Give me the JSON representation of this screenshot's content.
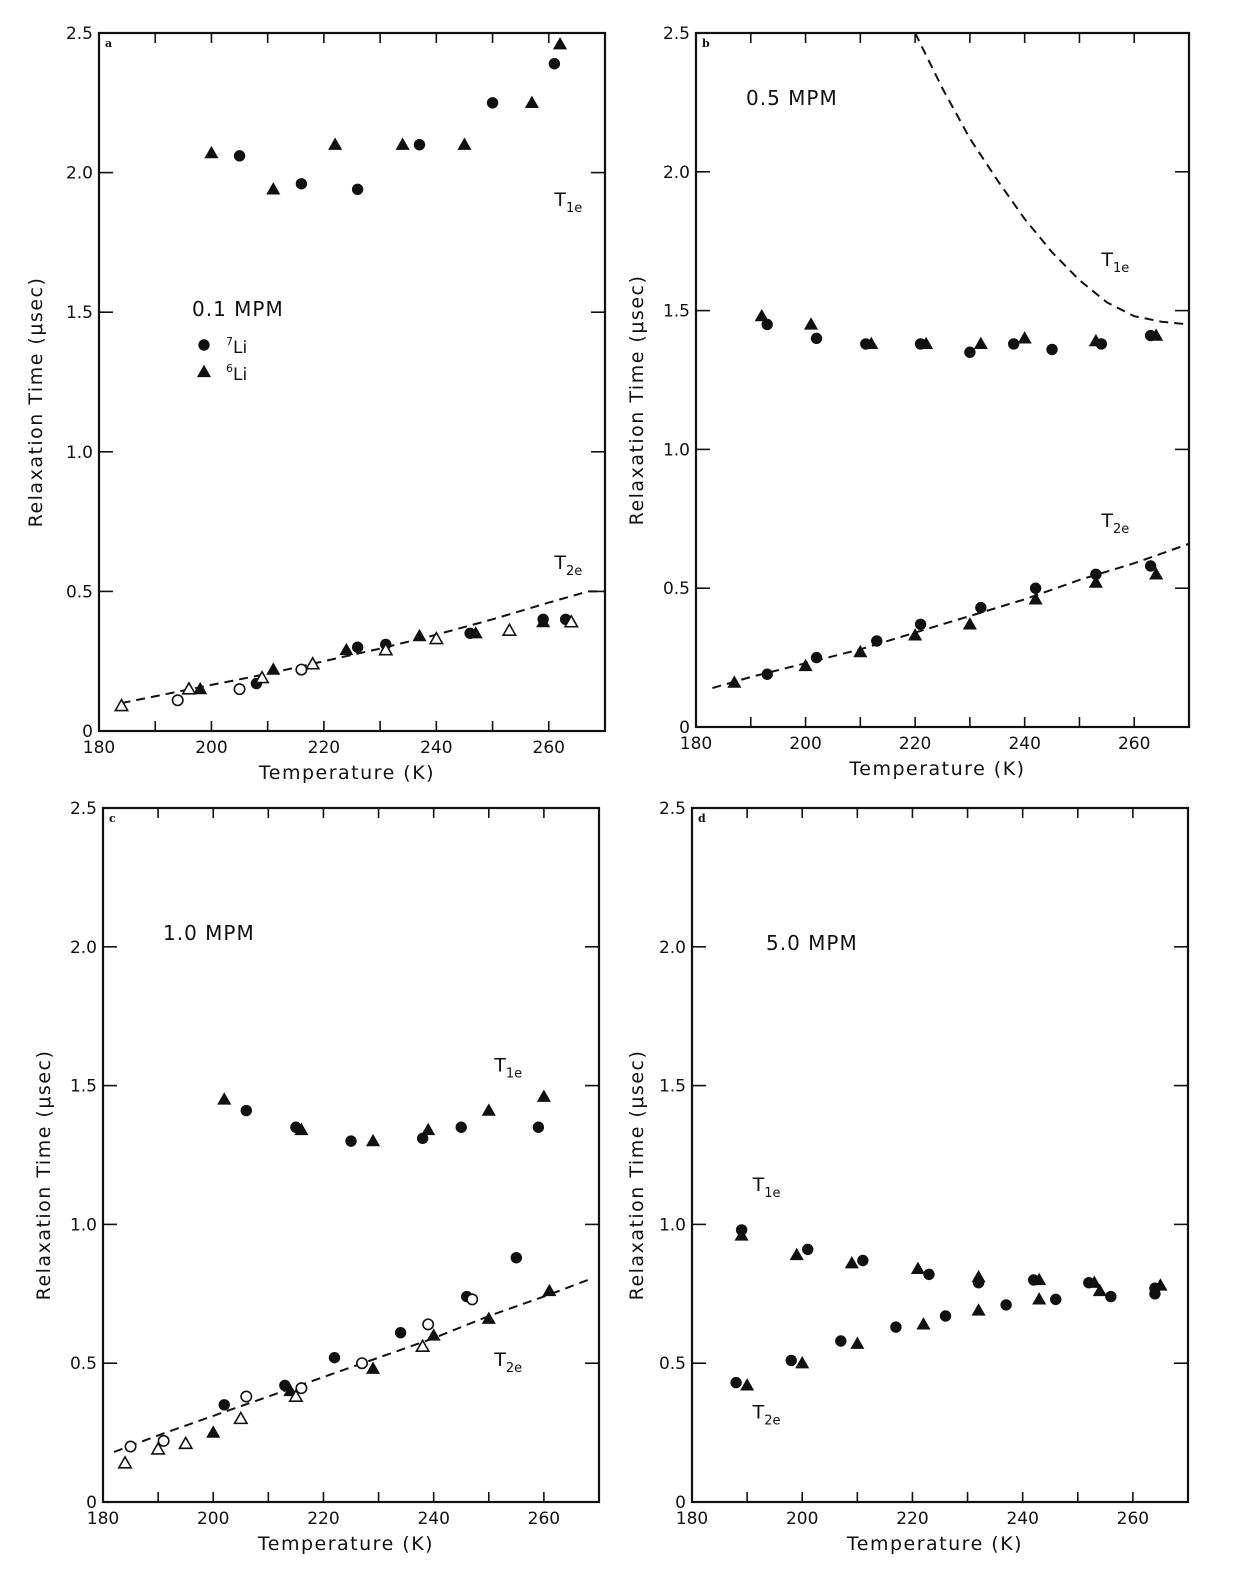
{
  "chart_data": [
    {
      "panel": "a",
      "type": "scatter",
      "annotation": "0.1 MPM",
      "xlabel": "Temperature (K)",
      "ylabel": "Relaxation Time (μsec)",
      "xlim": [
        180,
        270
      ],
      "ylim": [
        0,
        2.5
      ],
      "xticks": [
        180,
        200,
        220,
        240,
        260
      ],
      "xminor": [
        190,
        210,
        230,
        250,
        270
      ],
      "yticks": [
        0,
        0.5,
        1.0,
        1.5,
        2.0,
        2.5
      ],
      "ytick_labels": [
        "0",
        "0.5",
        "1.0",
        "1.5",
        "2.0",
        "2.5"
      ],
      "grid": false,
      "legend": {
        "placement": "center-left",
        "entries": [
          {
            "marker": "filled-circle",
            "isotope": "Li",
            "mass": "7"
          },
          {
            "marker": "filled-triangle",
            "isotope": "Li",
            "mass": "6"
          }
        ]
      },
      "curve_labels": [
        {
          "main": "T",
          "sub": "1e",
          "at": [
            261,
            1.88
          ]
        },
        {
          "main": "T",
          "sub": "2e",
          "at": [
            261,
            0.58
          ]
        }
      ],
      "series": [
        {
          "name": "T1e 7Li",
          "marker": "filled-circle",
          "x": [
            205,
            216,
            226,
            237,
            250,
            261
          ],
          "y": [
            2.06,
            1.96,
            1.94,
            2.1,
            2.25,
            2.39
          ]
        },
        {
          "name": "T1e 6Li",
          "marker": "filled-triangle",
          "x": [
            200,
            211,
            222,
            234,
            245,
            257,
            262
          ],
          "y": [
            2.07,
            1.94,
            2.1,
            2.1,
            2.1,
            2.25,
            2.46
          ]
        },
        {
          "name": "T2e 7Li",
          "marker": "filled-circle",
          "x": [
            208,
            226,
            231,
            246,
            259,
            263
          ],
          "y": [
            0.17,
            0.3,
            0.31,
            0.35,
            0.4,
            0.4
          ]
        },
        {
          "name": "T2e 6Li",
          "marker": "filled-triangle",
          "x": [
            198,
            211,
            224,
            237,
            247,
            259
          ],
          "y": [
            0.15,
            0.22,
            0.29,
            0.34,
            0.35,
            0.39
          ]
        },
        {
          "name": "T2e 7Li (open)",
          "marker": "open-circle",
          "x": [
            194,
            205,
            216
          ],
          "y": [
            0.11,
            0.15,
            0.22
          ]
        },
        {
          "name": "T2e 6Li (open)",
          "marker": "open-triangle",
          "x": [
            184,
            196,
            209,
            218,
            231,
            240,
            253,
            264
          ],
          "y": [
            0.09,
            0.15,
            0.19,
            0.24,
            0.29,
            0.33,
            0.36,
            0.39
          ]
        }
      ],
      "fits": [
        {
          "name": "T2e fit",
          "style": "dashed",
          "x": [
            184,
            200,
            210,
            220,
            230,
            240,
            250,
            260,
            267,
            270
          ],
          "y": [
            0.1,
            0.165,
            0.205,
            0.25,
            0.295,
            0.345,
            0.4,
            0.46,
            0.5,
            0.5
          ]
        }
      ]
    },
    {
      "panel": "b",
      "type": "scatter",
      "annotation": "0.5 MPM",
      "xlabel": "Temperature (K)",
      "ylabel": "Relaxation Time (μsec)",
      "xlim": [
        180,
        270
      ],
      "ylim": [
        0,
        2.5
      ],
      "xticks": [
        180,
        200,
        220,
        240,
        260
      ],
      "xminor": [
        190,
        210,
        230,
        250,
        270
      ],
      "yticks": [
        0,
        0.5,
        1.0,
        1.5,
        2.0,
        2.5
      ],
      "ytick_labels": [
        "0",
        "0.5",
        "1.0",
        "1.5",
        "2.0",
        "2.5"
      ],
      "grid": false,
      "curve_labels": [
        {
          "main": "T",
          "sub": "1e",
          "at": [
            254,
            1.66
          ]
        },
        {
          "main": "T",
          "sub": "2e",
          "at": [
            254,
            0.72
          ]
        }
      ],
      "series": [
        {
          "name": "T1e 7Li",
          "marker": "filled-circle",
          "x": [
            193,
            202,
            211,
            221,
            230,
            238,
            245,
            254,
            263
          ],
          "y": [
            1.45,
            1.4,
            1.38,
            1.38,
            1.35,
            1.38,
            1.36,
            1.38,
            1.41
          ]
        },
        {
          "name": "T1e 6Li",
          "marker": "filled-triangle",
          "x": [
            192,
            201,
            212,
            222,
            232,
            240,
            253,
            264
          ],
          "y": [
            1.48,
            1.45,
            1.38,
            1.38,
            1.38,
            1.4,
            1.39,
            1.41
          ]
        },
        {
          "name": "T2e 7Li",
          "marker": "filled-circle",
          "x": [
            193,
            202,
            213,
            221,
            232,
            242,
            253,
            263
          ],
          "y": [
            0.19,
            0.25,
            0.31,
            0.37,
            0.43,
            0.5,
            0.55,
            0.58
          ]
        },
        {
          "name": "T2e 6Li",
          "marker": "filled-triangle",
          "x": [
            187,
            200,
            210,
            220,
            230,
            242,
            253,
            264
          ],
          "y": [
            0.16,
            0.22,
            0.27,
            0.33,
            0.37,
            0.46,
            0.52,
            0.55
          ]
        }
      ],
      "fits": [
        {
          "name": "T1e fit",
          "style": "dashed",
          "x": [
            220,
            225,
            230,
            235,
            240,
            245,
            250,
            255,
            260,
            265,
            270
          ],
          "y": [
            2.5,
            2.3,
            2.12,
            1.97,
            1.83,
            1.71,
            1.61,
            1.53,
            1.48,
            1.46,
            1.45
          ]
        },
        {
          "name": "T2e fit",
          "style": "dashed",
          "x": [
            183,
            190,
            200,
            210,
            220,
            230,
            240,
            250,
            260,
            270
          ],
          "y": [
            0.14,
            0.18,
            0.23,
            0.28,
            0.34,
            0.4,
            0.46,
            0.53,
            0.59,
            0.66
          ]
        }
      ]
    },
    {
      "panel": "c",
      "type": "scatter",
      "annotation": "1.0 MPM",
      "xlabel": "Temperature (K)",
      "ylabel": "Relaxation Time (μsec)",
      "xlim": [
        180,
        270
      ],
      "ylim": [
        0,
        2.5
      ],
      "xticks": [
        180,
        200,
        220,
        240,
        260
      ],
      "xminor": [
        190,
        210,
        230,
        250,
        270
      ],
      "yticks": [
        0,
        0.5,
        1.0,
        1.5,
        2.0,
        2.5
      ],
      "ytick_labels": [
        "0",
        "0.5",
        "1.0",
        "1.5",
        "2.0",
        "2.5"
      ],
      "grid": false,
      "curve_labels": [
        {
          "main": "T",
          "sub": "1e",
          "at": [
            251,
            1.55
          ]
        },
        {
          "main": "T",
          "sub": "2e",
          "at": [
            251,
            0.49
          ]
        }
      ],
      "series": [
        {
          "name": "T1e 7Li",
          "marker": "filled-circle",
          "x": [
            206,
            215,
            225,
            238,
            245,
            259
          ],
          "y": [
            1.41,
            1.35,
            1.3,
            1.31,
            1.35,
            1.35
          ]
        },
        {
          "name": "T1e 6Li",
          "marker": "filled-triangle",
          "x": [
            202,
            216,
            229,
            239,
            250,
            260
          ],
          "y": [
            1.45,
            1.34,
            1.3,
            1.34,
            1.41,
            1.46
          ]
        },
        {
          "name": "T2e 7Li",
          "marker": "filled-circle",
          "x": [
            202,
            213,
            222,
            234,
            246,
            255
          ],
          "y": [
            0.35,
            0.42,
            0.52,
            0.61,
            0.74,
            0.88
          ]
        },
        {
          "name": "T2e 6Li",
          "marker": "filled-triangle",
          "x": [
            200,
            214,
            229,
            240,
            250,
            261
          ],
          "y": [
            0.25,
            0.4,
            0.48,
            0.6,
            0.66,
            0.76
          ]
        },
        {
          "name": "T2e 7Li (open)",
          "marker": "open-circle",
          "x": [
            185,
            191,
            206,
            216,
            227,
            239,
            247
          ],
          "y": [
            0.2,
            0.22,
            0.38,
            0.41,
            0.5,
            0.64,
            0.73
          ]
        },
        {
          "name": "T2e 6Li (open)",
          "marker": "open-triangle",
          "x": [
            184,
            190,
            195,
            205,
            215,
            238
          ],
          "y": [
            0.14,
            0.19,
            0.21,
            0.3,
            0.38,
            0.56
          ]
        }
      ],
      "fits": [
        {
          "name": "T2e fit",
          "style": "dashed",
          "x": [
            182,
            190,
            200,
            210,
            220,
            230,
            240,
            250,
            260,
            268
          ],
          "y": [
            0.18,
            0.24,
            0.31,
            0.38,
            0.45,
            0.52,
            0.59,
            0.67,
            0.74,
            0.8
          ]
        }
      ]
    },
    {
      "panel": "d",
      "type": "scatter",
      "annotation": "5.0 MPM",
      "xlabel": "Temperature (K)",
      "ylabel": "Relaxation Time (μsec)",
      "xlim": [
        180,
        270
      ],
      "ylim": [
        0,
        2.5
      ],
      "xticks": [
        180,
        200,
        220,
        240,
        260
      ],
      "xminor": [
        190,
        210,
        230,
        250,
        270
      ],
      "yticks": [
        0,
        0.5,
        1.0,
        1.5,
        2.0,
        2.5
      ],
      "ytick_labels": [
        "0",
        "0.5",
        "1.0",
        "1.5",
        "2.0",
        "2.5"
      ],
      "grid": false,
      "curve_labels": [
        {
          "main": "T",
          "sub": "1e",
          "at": [
            191,
            1.12
          ]
        },
        {
          "main": "T",
          "sub": "2e",
          "at": [
            191,
            0.3
          ]
        }
      ],
      "series": [
        {
          "name": "T1e 7Li",
          "marker": "filled-circle",
          "x": [
            189,
            201,
            211,
            223,
            232,
            242,
            252,
            264
          ],
          "y": [
            0.98,
            0.91,
            0.87,
            0.82,
            0.79,
            0.8,
            0.79,
            0.77
          ]
        },
        {
          "name": "T1e 6Li",
          "marker": "filled-triangle",
          "x": [
            189,
            199,
            209,
            221,
            232,
            243,
            253,
            265
          ],
          "y": [
            0.96,
            0.89,
            0.86,
            0.84,
            0.81,
            0.8,
            0.79,
            0.78
          ]
        },
        {
          "name": "T2e 7Li",
          "marker": "filled-circle",
          "x": [
            188,
            198,
            207,
            217,
            226,
            237,
            246,
            256,
            264
          ],
          "y": [
            0.43,
            0.51,
            0.58,
            0.63,
            0.67,
            0.71,
            0.73,
            0.74,
            0.75
          ]
        },
        {
          "name": "T2e 6Li",
          "marker": "filled-triangle",
          "x": [
            190,
            200,
            210,
            222,
            232,
            243,
            254
          ],
          "y": [
            0.42,
            0.5,
            0.57,
            0.64,
            0.69,
            0.73,
            0.76
          ]
        }
      ],
      "fits": []
    }
  ],
  "figure": {
    "panel_letters": [
      "a",
      "b",
      "c",
      "d"
    ],
    "ylabel_parts": [
      "Relaxation",
      "Time",
      "(μsec)"
    ],
    "xlabel": "Temperature (K)",
    "legend_labels": {
      "isotope": "Li",
      "seven": "7",
      "six": "6"
    }
  }
}
